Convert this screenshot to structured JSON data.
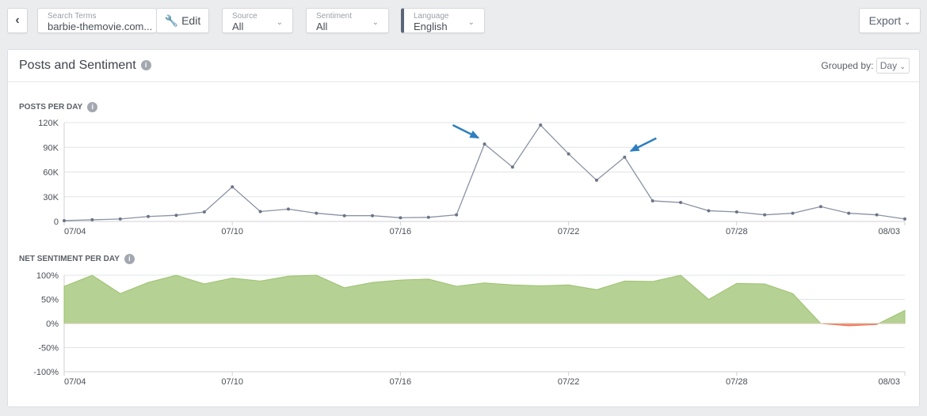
{
  "toolbar": {
    "back_icon": "chevron-left-icon",
    "search_terms": {
      "label": "Search Terms",
      "value": "barbie-themovie.com..."
    },
    "edit_label": "Edit",
    "edit_icon": "wrench-icon",
    "source": {
      "label": "Source",
      "value": "All"
    },
    "sentiment": {
      "label": "Sentiment",
      "value": "All"
    },
    "language": {
      "label": "Language",
      "value": "English"
    },
    "export_label": "Export"
  },
  "card": {
    "title": "Posts and Sentiment",
    "grouped_by_label": "Grouped by:",
    "grouped_by_value": "Day"
  },
  "chart_data": [
    {
      "type": "line",
      "title": "POSTS PER DAY",
      "x": [
        "07/04",
        "07/05",
        "07/06",
        "07/07",
        "07/08",
        "07/09",
        "07/10",
        "07/11",
        "07/12",
        "07/13",
        "07/14",
        "07/15",
        "07/16",
        "07/17",
        "07/18",
        "07/19",
        "07/20",
        "07/21",
        "07/22",
        "07/23",
        "07/24",
        "07/25",
        "07/26",
        "07/27",
        "07/28",
        "07/29",
        "07/30",
        "07/31",
        "08/01",
        "08/02",
        "08/03"
      ],
      "values": [
        1000,
        2000,
        3000,
        6000,
        7500,
        11500,
        42000,
        12000,
        15000,
        10000,
        7000,
        7000,
        4500,
        5000,
        8000,
        94000,
        66000,
        117000,
        82000,
        50000,
        78000,
        25000,
        23000,
        13000,
        11500,
        8000,
        10000,
        18000,
        10000,
        8000,
        3000
      ],
      "xticks": [
        "07/04",
        "07/10",
        "07/16",
        "07/22",
        "07/28",
        "08/03"
      ],
      "yticks": [
        "0",
        "30K",
        "60K",
        "90K",
        "120K"
      ],
      "ylim": [
        0,
        120000
      ],
      "grid": true,
      "line_color": "#8a93a3",
      "annotations": [
        {
          "type": "arrow",
          "points_to": "07/19",
          "color": "#2e7fbf"
        },
        {
          "type": "arrow",
          "points_to": "07/24",
          "color": "#2e7fbf"
        }
      ]
    },
    {
      "type": "area",
      "title": "NET SENTIMENT PER DAY",
      "x": [
        "07/04",
        "07/05",
        "07/06",
        "07/07",
        "07/08",
        "07/09",
        "07/10",
        "07/11",
        "07/12",
        "07/13",
        "07/14",
        "07/15",
        "07/16",
        "07/17",
        "07/18",
        "07/19",
        "07/20",
        "07/21",
        "07/22",
        "07/23",
        "07/24",
        "07/25",
        "07/26",
        "07/27",
        "07/28",
        "07/29",
        "07/30",
        "07/31",
        "08/01",
        "08/02",
        "08/03"
      ],
      "values": [
        77,
        100,
        62,
        85,
        100,
        82,
        94,
        88,
        98,
        100,
        74,
        85,
        90,
        92,
        77,
        84,
        80,
        78,
        80,
        70,
        88,
        87,
        100,
        50,
        83,
        82,
        62,
        0,
        -5,
        -2,
        27
      ],
      "xticks": [
        "07/04",
        "07/10",
        "07/16",
        "07/22",
        "07/28",
        "08/03"
      ],
      "yticks": [
        "-100%",
        "-50%",
        "0%",
        "50%",
        "100%"
      ],
      "ylim": [
        -100,
        100
      ],
      "grid": true,
      "positive_color": "#b5d193",
      "negative_color": "#f28b6e"
    }
  ]
}
